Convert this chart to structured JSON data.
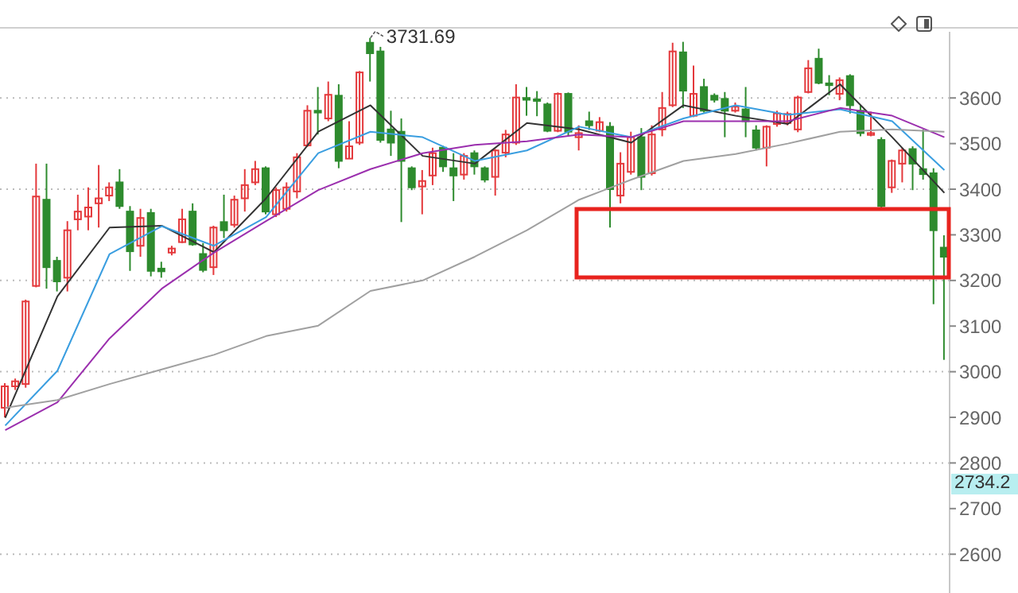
{
  "chart_data": {
    "type": "candlestick",
    "categories": [
      null,
      null,
      null,
      null,
      null,
      null,
      null,
      null,
      null,
      null,
      null,
      null,
      null,
      null,
      null,
      null,
      null,
      null,
      null,
      null,
      null,
      null,
      null,
      null,
      null,
      null,
      null,
      null,
      null,
      null,
      null,
      null,
      null,
      null,
      null,
      null,
      null,
      null,
      null,
      null,
      null,
      null,
      null,
      null,
      null,
      null,
      null,
      null,
      null,
      null,
      null,
      null,
      null,
      null,
      null,
      null,
      null,
      null,
      null,
      null,
      null,
      null,
      null,
      null,
      null,
      null,
      null,
      null,
      null,
      null,
      null,
      null,
      null,
      null,
      null,
      null,
      null,
      null,
      null,
      null,
      null,
      null,
      null,
      null,
      null,
      null,
      null,
      null,
      null,
      null,
      null
    ],
    "ohlc": [
      [
        2921,
        2975,
        2900,
        2968
      ],
      [
        2968,
        2985,
        2960,
        2979
      ],
      [
        2973,
        3158,
        2965,
        3154
      ],
      [
        3188,
        3456,
        3185,
        3384
      ],
      [
        3377,
        3456,
        3182,
        3229
      ],
      [
        3243,
        3252,
        3176,
        3198
      ],
      [
        3206,
        3330,
        3176,
        3310
      ],
      [
        3334,
        3388,
        3310,
        3351
      ],
      [
        3340,
        3404,
        3310,
        3360
      ],
      [
        3369,
        3453,
        3316,
        3380
      ],
      [
        3386,
        3415,
        3374,
        3404
      ],
      [
        3415,
        3444,
        3357,
        3363
      ],
      [
        3351,
        3363,
        3221,
        3264
      ],
      [
        3276,
        3357,
        3252,
        3337
      ],
      [
        3348,
        3357,
        3209,
        3221
      ],
      [
        3226,
        3241,
        3206,
        3220
      ],
      [
        3261,
        3276,
        3255,
        3270
      ],
      [
        3284,
        3357,
        3282,
        3334
      ],
      [
        3351,
        3369,
        3276,
        3279
      ],
      [
        3258,
        3282,
        3218,
        3223
      ],
      [
        3229,
        3320,
        3212,
        3316
      ],
      [
        3328,
        3388,
        3293,
        3310
      ],
      [
        3322,
        3386,
        3316,
        3377
      ],
      [
        3380,
        3444,
        3351,
        3409
      ],
      [
        3415,
        3462,
        3409,
        3444
      ],
      [
        3446,
        3450,
        3345,
        3351
      ],
      [
        3345,
        3404,
        3339,
        3398
      ],
      [
        3357,
        3415,
        3351,
        3404
      ],
      [
        3395,
        3479,
        3380,
        3470
      ],
      [
        3496,
        3584,
        3493,
        3572
      ],
      [
        3572,
        3624,
        3520,
        3568
      ],
      [
        3555,
        3636,
        3549,
        3607
      ],
      [
        3605,
        3630,
        3446,
        3462
      ],
      [
        3467,
        3549,
        3467,
        3494
      ],
      [
        3502,
        3659,
        3497,
        3656
      ],
      [
        3721,
        3731.69,
        3636,
        3698
      ],
      [
        3702,
        3712,
        3502,
        3508
      ],
      [
        3531,
        3572,
        3473,
        3502
      ],
      [
        3526,
        3555,
        3328,
        3462
      ],
      [
        3446,
        3450,
        3398,
        3404
      ],
      [
        3406,
        3442,
        3345,
        3418
      ],
      [
        3430,
        3491,
        3409,
        3479
      ],
      [
        3491,
        3495,
        3438,
        3450
      ],
      [
        3446,
        3479,
        3374,
        3430
      ],
      [
        3432,
        3479,
        3421,
        3473
      ],
      [
        3479,
        3485,
        3432,
        3450
      ],
      [
        3446,
        3450,
        3415,
        3421
      ],
      [
        3427,
        3488,
        3386,
        3485
      ],
      [
        3480,
        3530,
        3470,
        3520
      ],
      [
        3502,
        3630,
        3497,
        3601
      ],
      [
        3600,
        3624,
        3561,
        3596
      ],
      [
        3597,
        3615,
        3560,
        3594
      ],
      [
        3586,
        3590,
        3525,
        3528
      ],
      [
        3528,
        3612,
        3525,
        3609
      ],
      [
        3609,
        3612,
        3516,
        3526
      ],
      [
        3514,
        3540,
        3485,
        3523
      ],
      [
        3549,
        3570,
        3530,
        3540
      ],
      [
        3528,
        3558,
        3525,
        3547
      ],
      [
        3537,
        3547,
        3316,
        3400
      ],
      [
        3386,
        3481,
        3369,
        3456
      ],
      [
        3438,
        3526,
        3432,
        3514
      ],
      [
        3514,
        3534,
        3398,
        3427
      ],
      [
        3435,
        3540,
        3430,
        3520
      ],
      [
        3531,
        3613,
        3516,
        3578
      ],
      [
        3584,
        3721,
        3580,
        3702
      ],
      [
        3700,
        3723,
        3578,
        3616
      ],
      [
        3561,
        3671,
        3558,
        3609
      ],
      [
        3624,
        3642,
        3568,
        3572
      ],
      [
        3605,
        3610,
        3590,
        3596
      ],
      [
        3598,
        3613,
        3514,
        3572
      ],
      [
        3572,
        3590,
        3568,
        3581
      ],
      [
        3575,
        3624,
        3514,
        3549
      ],
      [
        3529,
        3540,
        3485,
        3491
      ],
      [
        3491,
        3540,
        3450,
        3537
      ],
      [
        3543,
        3572,
        3537,
        3566
      ],
      [
        3545,
        3570,
        3540,
        3565
      ],
      [
        3531,
        3605,
        3525,
        3601
      ],
      [
        3613,
        3683,
        3610,
        3665
      ],
      [
        3686,
        3708,
        3630,
        3633
      ],
      [
        3632,
        3650,
        3606,
        3628
      ],
      [
        3609,
        3645,
        3595,
        3639
      ],
      [
        3648,
        3652,
        3566,
        3584
      ],
      [
        3572,
        3584,
        3516,
        3523
      ],
      [
        3519,
        3570,
        3516,
        3523
      ],
      [
        3508,
        3514,
        3357,
        3363
      ],
      [
        3404,
        3465,
        3392,
        3462
      ],
      [
        3456,
        3491,
        3415,
        3485
      ],
      [
        3488,
        3494,
        3398,
        3456
      ],
      [
        3444,
        3531,
        3421,
        3433
      ],
      [
        3435,
        3446,
        3148,
        3310
      ],
      [
        3272,
        3299,
        3026,
        3252
      ]
    ],
    "series": [
      {
        "type": "line",
        "color": "#333333",
        "values": [
          2899,
          null,
          null,
          null,
          null,
          3165,
          null,
          null,
          null,
          null,
          3316,
          null,
          null,
          null,
          null,
          3320,
          null,
          null,
          null,
          null,
          3262,
          null,
          null,
          null,
          null,
          3380,
          null,
          null,
          null,
          null,
          3526,
          null,
          null,
          null,
          null,
          3584,
          null,
          null,
          null,
          null,
          3473,
          null,
          null,
          null,
          null,
          3456,
          null,
          null,
          null,
          null,
          3545,
          null,
          null,
          null,
          null,
          3531,
          null,
          null,
          null,
          null,
          3502,
          null,
          null,
          null,
          null,
          3584,
          null,
          null,
          null,
          null,
          3561,
          null,
          null,
          null,
          null,
          3543,
          null,
          null,
          null,
          null,
          3630,
          null,
          null,
          null,
          null,
          3514,
          null,
          null,
          null,
          null,
          3392
        ]
      },
      {
        "type": "line",
        "color": "#3a9ee0",
        "values": [
          2882,
          null,
          null,
          null,
          null,
          3002,
          null,
          null,
          null,
          null,
          3258,
          null,
          null,
          null,
          null,
          3319,
          null,
          null,
          null,
          null,
          3276,
          null,
          null,
          null,
          null,
          3339,
          null,
          null,
          null,
          null,
          3479,
          null,
          null,
          null,
          null,
          3526,
          null,
          null,
          null,
          null,
          3514,
          null,
          null,
          null,
          null,
          3462,
          null,
          null,
          null,
          null,
          3485,
          null,
          null,
          null,
          null,
          3537,
          null,
          null,
          null,
          null,
          3514,
          null,
          null,
          null,
          null,
          3555,
          null,
          null,
          null,
          null,
          3584,
          null,
          null,
          null,
          null,
          3563,
          null,
          null,
          null,
          null,
          3575,
          null,
          null,
          null,
          null,
          3549,
          null,
          null,
          null,
          null,
          3442
        ]
      },
      {
        "type": "line",
        "color": "#9b2fae",
        "values": [
          2872,
          null,
          null,
          null,
          null,
          2933,
          null,
          null,
          null,
          null,
          3073,
          null,
          null,
          null,
          null,
          3182,
          null,
          null,
          null,
          null,
          3261,
          null,
          null,
          null,
          null,
          3330,
          null,
          null,
          null,
          null,
          3398,
          null,
          null,
          null,
          null,
          3444,
          null,
          null,
          null,
          null,
          3479,
          null,
          null,
          null,
          null,
          3497,
          null,
          null,
          null,
          null,
          3505,
          null,
          null,
          null,
          null,
          3520,
          null,
          null,
          null,
          null,
          3514,
          null,
          null,
          null,
          null,
          3549,
          null,
          null,
          null,
          null,
          3549,
          null,
          null,
          null,
          null,
          3549,
          null,
          null,
          null,
          null,
          3578,
          null,
          null,
          null,
          null,
          3561,
          null,
          null,
          null,
          null,
          3514
        ]
      },
      {
        "type": "line",
        "color": "#a0a0a0",
        "values": [
          2921,
          null,
          null,
          null,
          null,
          2938,
          null,
          null,
          null,
          null,
          2973,
          null,
          null,
          null,
          null,
          3005,
          null,
          null,
          null,
          null,
          3037,
          null,
          null,
          null,
          null,
          3078,
          null,
          null,
          null,
          null,
          3101,
          null,
          null,
          null,
          null,
          3177,
          null,
          null,
          null,
          null,
          3200,
          null,
          null,
          null,
          null,
          3252,
          null,
          null,
          null,
          null,
          3310,
          null,
          null,
          null,
          null,
          3377,
          null,
          null,
          null,
          null,
          3421,
          null,
          null,
          null,
          null,
          3462,
          null,
          null,
          null,
          null,
          3477,
          null,
          null,
          null,
          null,
          3500,
          null,
          null,
          null,
          null,
          3526,
          null,
          null,
          null,
          null,
          3531,
          null,
          null,
          null,
          null,
          3526
        ]
      }
    ],
    "ylim": [
      2515,
      3745
    ],
    "yticks": [
      2600,
      2700,
      2800,
      2900,
      3000,
      3100,
      3200,
      3300,
      3400,
      3500,
      3600
    ],
    "grid": "y",
    "tick_labels": "y",
    "annotations": [
      "3731.69",
      "2734.2"
    ]
  }
}
